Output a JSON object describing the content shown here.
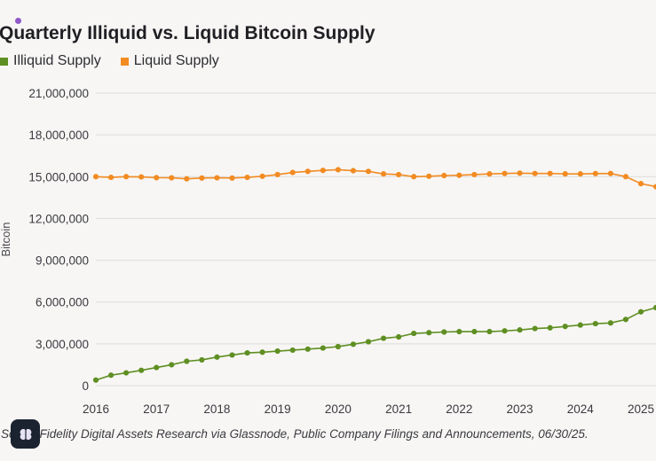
{
  "chart_data": {
    "type": "line",
    "title": "Quarterly Illiquid vs. Liquid Bitcoin Supply",
    "xlabel": "",
    "ylabel": "Bitcoin",
    "ylim": [
      0,
      21000000
    ],
    "xlim": [
      2016,
      2025.5
    ],
    "yticks": [
      0,
      3000000,
      6000000,
      9000000,
      12000000,
      15000000,
      18000000,
      21000000
    ],
    "ytick_labels": [
      "0",
      "3,000,000",
      "6,000,000",
      "9,000,000",
      "12,000,000",
      "15,000,000",
      "18,000,000",
      "21,000,000"
    ],
    "xticks": [
      2016,
      2017,
      2018,
      2019,
      2020,
      2021,
      2022,
      2023,
      2024,
      2025
    ],
    "xtick_labels": [
      "2016",
      "2017",
      "2018",
      "2019",
      "2020",
      "2021",
      "2022",
      "2023",
      "2024",
      "2025"
    ],
    "grid": true,
    "legend_position": "top-left",
    "x": [
      2016.0,
      2016.25,
      2016.5,
      2016.75,
      2017.0,
      2017.25,
      2017.5,
      2017.75,
      2018.0,
      2018.25,
      2018.5,
      2018.75,
      2019.0,
      2019.25,
      2019.5,
      2019.75,
      2020.0,
      2020.25,
      2020.5,
      2020.75,
      2021.0,
      2021.25,
      2021.5,
      2021.75,
      2022.0,
      2022.25,
      2022.5,
      2022.75,
      2023.0,
      2023.25,
      2023.5,
      2023.75,
      2024.0,
      2024.25,
      2024.5,
      2024.75,
      2025.0,
      2025.25,
      2025.5
    ],
    "series": [
      {
        "name": "Illiquid Supply",
        "color": "#5f8f22",
        "values": [
          400000,
          750000,
          920000,
          1100000,
          1300000,
          1500000,
          1750000,
          1850000,
          2050000,
          2200000,
          2350000,
          2400000,
          2480000,
          2550000,
          2620000,
          2700000,
          2800000,
          2970000,
          3150000,
          3400000,
          3500000,
          3750000,
          3800000,
          3850000,
          3880000,
          3880000,
          3880000,
          3930000,
          4000000,
          4100000,
          4150000,
          4250000,
          4350000,
          4450000,
          4500000,
          4750000,
          5300000,
          5600000,
          5850000
        ]
      },
      {
        "name": "Liquid Supply",
        "color": "#f28b22",
        "values": [
          15000000,
          14950000,
          15000000,
          14980000,
          14930000,
          14920000,
          14850000,
          14900000,
          14920000,
          14900000,
          14950000,
          15030000,
          15150000,
          15300000,
          15380000,
          15450000,
          15500000,
          15430000,
          15380000,
          15200000,
          15150000,
          15000000,
          15030000,
          15080000,
          15100000,
          15150000,
          15200000,
          15230000,
          15250000,
          15230000,
          15230000,
          15200000,
          15200000,
          15220000,
          15230000,
          15000000,
          14500000,
          14280000,
          14050000
        ]
      }
    ],
    "source": "Fidelity Digital Assets Research via Glassnode, Public Company Filings and Announcements, 06/30/25.",
    "source_prefix": "So"
  },
  "ui": {
    "chat_button_icon": "brain-icon"
  }
}
